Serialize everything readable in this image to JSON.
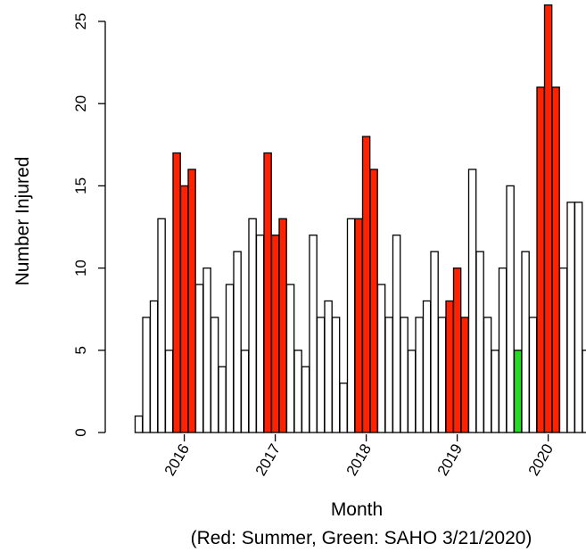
{
  "chart_data": {
    "type": "bar",
    "xlabel": "Month",
    "ylabel": "Number Injured",
    "note": "(Red: Summer, Green: SAHO 3/21/2020)",
    "ylim": [
      0,
      25
    ],
    "yticks": [
      0,
      5,
      10,
      15,
      20,
      25
    ],
    "year_ticks": [
      {
        "label": "2016",
        "index": 6
      },
      {
        "label": "2017",
        "index": 18
      },
      {
        "label": "2018",
        "index": 30
      },
      {
        "label": "2019",
        "index": 42
      },
      {
        "label": "2020",
        "index": 54
      }
    ],
    "colors": {
      "normal": "#ffffff",
      "summer": "#ff2200",
      "saho": "#22dd22",
      "outline": "#000000"
    },
    "values": [
      1,
      7,
      8,
      13,
      5,
      17,
      15,
      16,
      9,
      10,
      7,
      4,
      9,
      11,
      5,
      13,
      12,
      17,
      12,
      13,
      9,
      5,
      4,
      12,
      7,
      8,
      7,
      3,
      13,
      13,
      18,
      16,
      9,
      7,
      12,
      7,
      5,
      7,
      8,
      11,
      7,
      8,
      10,
      7,
      16,
      11,
      7,
      5,
      10,
      15,
      5,
      11,
      7,
      21,
      26,
      21,
      10,
      14,
      14,
      5
    ],
    "categories": [
      "normal",
      "normal",
      "normal",
      "normal",
      "normal",
      "summer",
      "summer",
      "summer",
      "normal",
      "normal",
      "normal",
      "normal",
      "normal",
      "normal",
      "normal",
      "normal",
      "normal",
      "summer",
      "summer",
      "summer",
      "normal",
      "normal",
      "normal",
      "normal",
      "normal",
      "normal",
      "normal",
      "normal",
      "normal",
      "summer",
      "summer",
      "summer",
      "normal",
      "normal",
      "normal",
      "normal",
      "normal",
      "normal",
      "normal",
      "normal",
      "normal",
      "summer",
      "summer",
      "summer",
      "normal",
      "normal",
      "normal",
      "normal",
      "normal",
      "normal",
      "saho",
      "normal",
      "normal",
      "summer",
      "summer",
      "summer",
      "normal",
      "normal",
      "normal",
      "normal"
    ]
  }
}
